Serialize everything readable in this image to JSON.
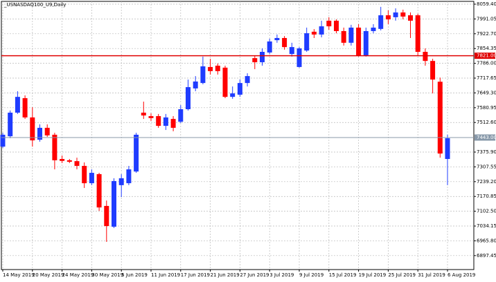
{
  "chart_data": {
    "type": "candlestick",
    "title": "_USNASDAQ100_U9,Daily",
    "categories": [
      "14 May 2019",
      null,
      null,
      null,
      "20 May 2019",
      null,
      null,
      null,
      "24 May 2019",
      null,
      null,
      null,
      "30 May 2019",
      null,
      null,
      null,
      "5 Jun 2019",
      null,
      null,
      null,
      "11 Jun 2019",
      null,
      null,
      null,
      "17 Jun 2019",
      null,
      null,
      null,
      "21 Jun 2019",
      null,
      null,
      null,
      "27 Jun 2019",
      null,
      null,
      null,
      "3 Jul 2019",
      null,
      null,
      null,
      "9 Jul 2019",
      null,
      null,
      null,
      "15 Jul 2019",
      null,
      null,
      null,
      "19 Jul 2019",
      null,
      null,
      null,
      "25 Jul 2019",
      null,
      null,
      null,
      "31 Jul 2019",
      null,
      null,
      null,
      "6 Aug 2019"
    ],
    "open": [
      7401,
      7449,
      7558,
      7625,
      7536,
      7433,
      7488,
      7456,
      7344,
      7338,
      7334,
      7312,
      7232,
      7274,
      7127,
      7031,
      7223,
      7232,
      7286,
      7558,
      7542,
      7542,
      7497,
      7529,
      7516,
      7574,
      7670,
      7695,
      7769,
      7775,
      7766,
      7631,
      7641,
      7695,
      7810,
      7791,
      7836,
      7893,
      7903,
      7829,
      7769,
      7845,
      7932,
      7919,
      7983,
      7983,
      7935,
      7881,
      7951,
      7823,
      7935,
      7945,
      8008,
      7999,
      8021,
      8008,
      8008,
      7839,
      7797,
      7701,
      7344
    ],
    "high": [
      7465,
      7568,
      7657,
      7638,
      7583,
      7504,
      7504,
      7465,
      7360,
      7344,
      7350,
      7328,
      7296,
      7280,
      7152,
      7255,
      7274,
      7312,
      7465,
      7609,
      7555,
      7552,
      7552,
      7542,
      7593,
      7711,
      7727,
      7817,
      7807,
      7785,
      7775,
      7679,
      7711,
      7740,
      7823,
      7855,
      7900,
      7919,
      7912,
      7881,
      7861,
      7951,
      7944,
      7983,
      7999,
      7989,
      7951,
      7964,
      7967,
      7951,
      7967,
      8047,
      8031,
      8040,
      8034,
      8021,
      8015,
      7855,
      7807,
      7720,
      7456
    ],
    "low": [
      7395,
      7440,
      7552,
      7529,
      7401,
      7424,
      7446,
      7296,
      7325,
      7325,
      7296,
      7210,
      7223,
      7104,
      6961,
      7025,
      7168,
      7223,
      7280,
      7529,
      7520,
      7488,
      7478,
      7472,
      7510,
      7568,
      7657,
      7689,
      7734,
      7734,
      7625,
      7622,
      7631,
      7679,
      7759,
      7775,
      7829,
      7881,
      7849,
      7817,
      7766,
      7839,
      7903,
      7906,
      7941,
      7925,
      7868,
      7868,
      7817,
      7817,
      7925,
      7938,
      7967,
      7983,
      7989,
      7903,
      7823,
      7775,
      7647,
      7350,
      7223
    ],
    "close": [
      7456,
      7558,
      7631,
      7536,
      7430,
      7488,
      7453,
      7338,
      7335,
      7331,
      7312,
      7232,
      7280,
      7120,
      7034,
      7242,
      7255,
      7296,
      7456,
      7545,
      7533,
      7497,
      7536,
      7488,
      7574,
      7676,
      7702,
      7772,
      7750,
      7750,
      7631,
      7647,
      7695,
      7727,
      7791,
      7839,
      7887,
      7903,
      7861,
      7861,
      7855,
      7925,
      7919,
      7957,
      7957,
      7935,
      7881,
      7951,
      7823,
      7935,
      7951,
      8008,
      7989,
      8021,
      8002,
      7983,
      7839,
      7797,
      7711,
      7369,
      7440
    ],
    "up_color": "#1f3cff",
    "down_color": "#ff0000",
    "ylim": [
      6833,
      8072.2
    ],
    "yticks": [
      {
        "value": 8059.4,
        "label": "8059.40"
      },
      {
        "value": 7991.05,
        "label": "7991.05"
      },
      {
        "value": 7922.7,
        "label": "7922.70"
      },
      {
        "value": 7854.35,
        "label": "7854.35"
      },
      {
        "value": 7786,
        "label": "7786.00"
      },
      {
        "value": 7717.65,
        "label": "7717.65"
      },
      {
        "value": 7649.3,
        "label": "7649.30"
      },
      {
        "value": 7580.95,
        "label": "7580.95"
      },
      {
        "value": 7512.6,
        "label": "7512.60"
      },
      {
        "value": 7375.9,
        "label": "7375.90"
      },
      {
        "value": 7307.55,
        "label": "7307.55"
      },
      {
        "value": 7239.2,
        "label": "7239.20"
      },
      {
        "value": 7170.85,
        "label": "7170.85"
      },
      {
        "value": 7102.5,
        "label": "7102.50"
      },
      {
        "value": 7034.15,
        "label": "7034.15"
      },
      {
        "value": 6965.8,
        "label": "6965.80"
      },
      {
        "value": 6897.45,
        "label": "6897.45"
      }
    ],
    "hlines": [
      {
        "value": 7821,
        "label": "7821.00",
        "color": "#e00000"
      },
      {
        "value": 7443,
        "label": "7443.00",
        "color": "#8899aa"
      }
    ],
    "grid": true
  }
}
